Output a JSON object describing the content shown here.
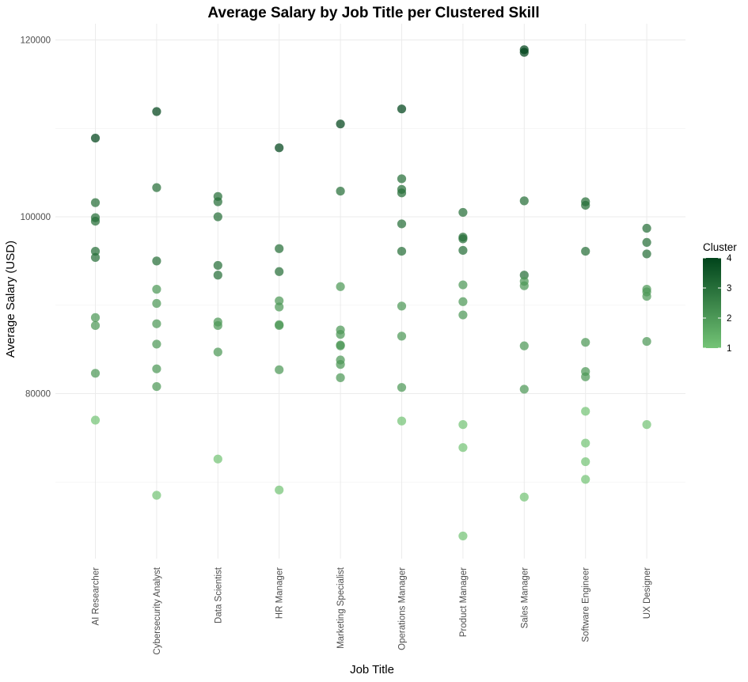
{
  "chart_data": {
    "type": "scatter",
    "title": "Average Salary by Job Title per Clustered Skill",
    "xlabel": "Job Title",
    "ylabel": "Average Salary (USD)",
    "categories": [
      "AI Researcher",
      "Cybersecurity Analyst",
      "Data Scientist",
      "HR Manager",
      "Marketing Specialist",
      "Operations Manager",
      "Product Manager",
      "Sales Manager",
      "Software Engineer",
      "UX Designer"
    ],
    "ylim": [
      60000,
      124000
    ],
    "yticks": [
      80000,
      100000,
      120000
    ],
    "ytick_labels": [
      "80000",
      "100000",
      "120000"
    ],
    "grid": true,
    "legend": {
      "title": "Cluster",
      "position": "right",
      "range": [
        1,
        4
      ],
      "ticks": [
        "1",
        "2",
        "3",
        "4"
      ],
      "color_low": "#74c476",
      "color_high": "#00441b"
    },
    "points": [
      {
        "x": "AI Researcher",
        "y": 108900,
        "cluster": 4
      },
      {
        "x": "AI Researcher",
        "y": 101600,
        "cluster": 3
      },
      {
        "x": "AI Researcher",
        "y": 99900,
        "cluster": 3
      },
      {
        "x": "AI Researcher",
        "y": 99500,
        "cluster": 3
      },
      {
        "x": "AI Researcher",
        "y": 96100,
        "cluster": 3
      },
      {
        "x": "AI Researcher",
        "y": 95400,
        "cluster": 3
      },
      {
        "x": "AI Researcher",
        "y": 88600,
        "cluster": 2
      },
      {
        "x": "AI Researcher",
        "y": 87700,
        "cluster": 2
      },
      {
        "x": "AI Researcher",
        "y": 82300,
        "cluster": 2
      },
      {
        "x": "AI Researcher",
        "y": 77000,
        "cluster": 1
      },
      {
        "x": "Cybersecurity Analyst",
        "y": 111900,
        "cluster": 4
      },
      {
        "x": "Cybersecurity Analyst",
        "y": 103300,
        "cluster": 3
      },
      {
        "x": "Cybersecurity Analyst",
        "y": 95000,
        "cluster": 3
      },
      {
        "x": "Cybersecurity Analyst",
        "y": 91800,
        "cluster": 2
      },
      {
        "x": "Cybersecurity Analyst",
        "y": 90200,
        "cluster": 2
      },
      {
        "x": "Cybersecurity Analyst",
        "y": 87900,
        "cluster": 2
      },
      {
        "x": "Cybersecurity Analyst",
        "y": 85600,
        "cluster": 2
      },
      {
        "x": "Cybersecurity Analyst",
        "y": 82800,
        "cluster": 2
      },
      {
        "x": "Cybersecurity Analyst",
        "y": 80800,
        "cluster": 2
      },
      {
        "x": "Cybersecurity Analyst",
        "y": 68500,
        "cluster": 1
      },
      {
        "x": "Data Scientist",
        "y": 102300,
        "cluster": 3
      },
      {
        "x": "Data Scientist",
        "y": 101700,
        "cluster": 3
      },
      {
        "x": "Data Scientist",
        "y": 100000,
        "cluster": 3
      },
      {
        "x": "Data Scientist",
        "y": 94500,
        "cluster": 3
      },
      {
        "x": "Data Scientist",
        "y": 93400,
        "cluster": 3
      },
      {
        "x": "Data Scientist",
        "y": 88100,
        "cluster": 2
      },
      {
        "x": "Data Scientist",
        "y": 87700,
        "cluster": 2
      },
      {
        "x": "Data Scientist",
        "y": 84700,
        "cluster": 2
      },
      {
        "x": "Data Scientist",
        "y": 72600,
        "cluster": 1
      },
      {
        "x": "HR Manager",
        "y": 107800,
        "cluster": 4
      },
      {
        "x": "HR Manager",
        "y": 96400,
        "cluster": 3
      },
      {
        "x": "HR Manager",
        "y": 93800,
        "cluster": 3
      },
      {
        "x": "HR Manager",
        "y": 90500,
        "cluster": 2
      },
      {
        "x": "HR Manager",
        "y": 89800,
        "cluster": 2
      },
      {
        "x": "HR Manager",
        "y": 87800,
        "cluster": 2
      },
      {
        "x": "HR Manager",
        "y": 87700,
        "cluster": 2
      },
      {
        "x": "HR Manager",
        "y": 82700,
        "cluster": 2
      },
      {
        "x": "HR Manager",
        "y": 69100,
        "cluster": 1
      },
      {
        "x": "Marketing Specialist",
        "y": 110500,
        "cluster": 4
      },
      {
        "x": "Marketing Specialist",
        "y": 102900,
        "cluster": 3
      },
      {
        "x": "Marketing Specialist",
        "y": 92100,
        "cluster": 2
      },
      {
        "x": "Marketing Specialist",
        "y": 87200,
        "cluster": 2
      },
      {
        "x": "Marketing Specialist",
        "y": 86700,
        "cluster": 2
      },
      {
        "x": "Marketing Specialist",
        "y": 85500,
        "cluster": 2
      },
      {
        "x": "Marketing Specialist",
        "y": 85400,
        "cluster": 2
      },
      {
        "x": "Marketing Specialist",
        "y": 83800,
        "cluster": 2
      },
      {
        "x": "Marketing Specialist",
        "y": 83300,
        "cluster": 2
      },
      {
        "x": "Marketing Specialist",
        "y": 81800,
        "cluster": 2
      },
      {
        "x": "Operations Manager",
        "y": 112200,
        "cluster": 4
      },
      {
        "x": "Operations Manager",
        "y": 104300,
        "cluster": 3
      },
      {
        "x": "Operations Manager",
        "y": 103100,
        "cluster": 3
      },
      {
        "x": "Operations Manager",
        "y": 102700,
        "cluster": 3
      },
      {
        "x": "Operations Manager",
        "y": 99200,
        "cluster": 3
      },
      {
        "x": "Operations Manager",
        "y": 96100,
        "cluster": 3
      },
      {
        "x": "Operations Manager",
        "y": 89900,
        "cluster": 2
      },
      {
        "x": "Operations Manager",
        "y": 86500,
        "cluster": 2
      },
      {
        "x": "Operations Manager",
        "y": 80700,
        "cluster": 2
      },
      {
        "x": "Operations Manager",
        "y": 76900,
        "cluster": 1
      },
      {
        "x": "Product Manager",
        "y": 100500,
        "cluster": 3
      },
      {
        "x": "Product Manager",
        "y": 97700,
        "cluster": 3
      },
      {
        "x": "Product Manager",
        "y": 97500,
        "cluster": 3
      },
      {
        "x": "Product Manager",
        "y": 96200,
        "cluster": 3
      },
      {
        "x": "Product Manager",
        "y": 92300,
        "cluster": 2
      },
      {
        "x": "Product Manager",
        "y": 90400,
        "cluster": 2
      },
      {
        "x": "Product Manager",
        "y": 88900,
        "cluster": 2
      },
      {
        "x": "Product Manager",
        "y": 76500,
        "cluster": 1
      },
      {
        "x": "Product Manager",
        "y": 73900,
        "cluster": 1
      },
      {
        "x": "Product Manager",
        "y": 63900,
        "cluster": 1
      },
      {
        "x": "Sales Manager",
        "y": 118900,
        "cluster": 4
      },
      {
        "x": "Sales Manager",
        "y": 118600,
        "cluster": 4
      },
      {
        "x": "Sales Manager",
        "y": 101800,
        "cluster": 3
      },
      {
        "x": "Sales Manager",
        "y": 93400,
        "cluster": 3
      },
      {
        "x": "Sales Manager",
        "y": 92700,
        "cluster": 2
      },
      {
        "x": "Sales Manager",
        "y": 92200,
        "cluster": 2
      },
      {
        "x": "Sales Manager",
        "y": 85400,
        "cluster": 2
      },
      {
        "x": "Sales Manager",
        "y": 80500,
        "cluster": 2
      },
      {
        "x": "Sales Manager",
        "y": 68300,
        "cluster": 1
      },
      {
        "x": "Software Engineer",
        "y": 101700,
        "cluster": 3
      },
      {
        "x": "Software Engineer",
        "y": 101300,
        "cluster": 3
      },
      {
        "x": "Software Engineer",
        "y": 96100,
        "cluster": 3
      },
      {
        "x": "Software Engineer",
        "y": 85800,
        "cluster": 2
      },
      {
        "x": "Software Engineer",
        "y": 82500,
        "cluster": 2
      },
      {
        "x": "Software Engineer",
        "y": 81900,
        "cluster": 2
      },
      {
        "x": "Software Engineer",
        "y": 78000,
        "cluster": 1
      },
      {
        "x": "Software Engineer",
        "y": 74400,
        "cluster": 1
      },
      {
        "x": "Software Engineer",
        "y": 72300,
        "cluster": 1
      },
      {
        "x": "Software Engineer",
        "y": 70300,
        "cluster": 1
      },
      {
        "x": "UX Designer",
        "y": 98700,
        "cluster": 3
      },
      {
        "x": "UX Designer",
        "y": 97100,
        "cluster": 3
      },
      {
        "x": "UX Designer",
        "y": 95800,
        "cluster": 3
      },
      {
        "x": "UX Designer",
        "y": 91800,
        "cluster": 2
      },
      {
        "x": "UX Designer",
        "y": 91500,
        "cluster": 2
      },
      {
        "x": "UX Designer",
        "y": 91000,
        "cluster": 2
      },
      {
        "x": "UX Designer",
        "y": 85900,
        "cluster": 2
      },
      {
        "x": "UX Designer",
        "y": 76500,
        "cluster": 1
      }
    ]
  }
}
